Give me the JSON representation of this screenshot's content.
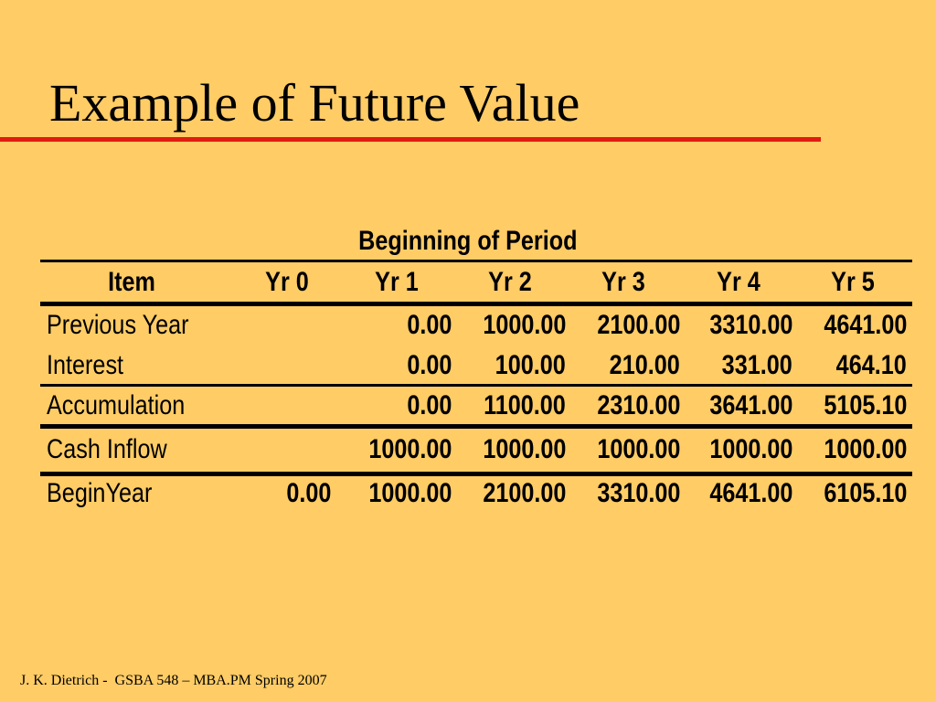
{
  "slide": {
    "title": "Example of Future Value",
    "footer": "J. K. Dietrich -  GSBA 548 – MBA.PM Spring 2007",
    "colors": {
      "background": "#FFCC66",
      "title_rule": "#E01B12",
      "text": "#000000"
    }
  },
  "table": {
    "caption": "Beginning of Period",
    "headers": [
      "Item",
      "Yr 0",
      "Yr 1",
      "Yr 2",
      "Yr 3",
      "Yr 4",
      "Yr 5"
    ],
    "rows": [
      {
        "label": "Previous Year",
        "values": [
          "",
          "0.00",
          "1000.00",
          "2100.00",
          "3310.00",
          "4641.00"
        ]
      },
      {
        "label": "Interest",
        "values": [
          "",
          "0.00",
          "100.00",
          "210.00",
          "331.00",
          "464.10"
        ]
      },
      {
        "label": "Accumulation",
        "values": [
          "",
          "0.00",
          "1100.00",
          "2310.00",
          "3641.00",
          "5105.10"
        ]
      },
      {
        "label": "Cash Inflow",
        "values": [
          "",
          "1000.00",
          "1000.00",
          "1000.00",
          "1000.00",
          "1000.00"
        ]
      },
      {
        "label": "BeginYear",
        "values": [
          "0.00",
          "1000.00",
          "2100.00",
          "3310.00",
          "4641.00",
          "6105.10"
        ]
      }
    ]
  }
}
